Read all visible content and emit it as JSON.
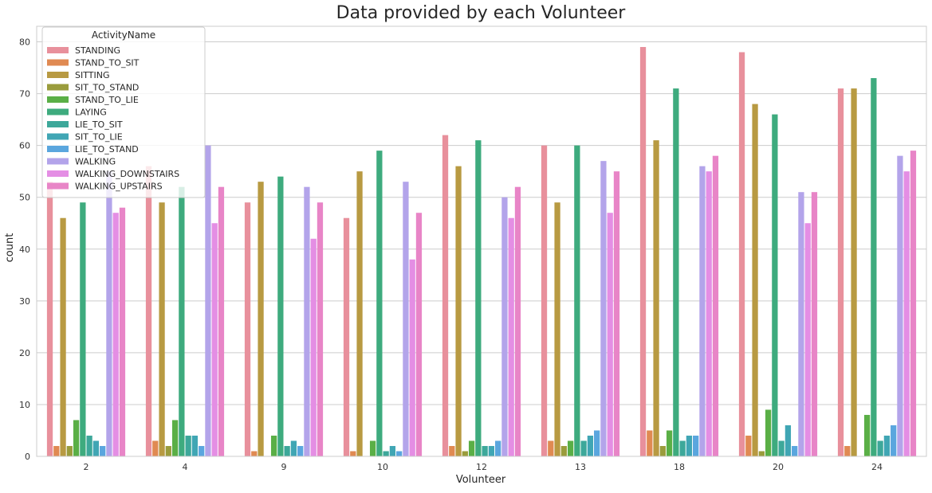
{
  "chart_data": {
    "type": "bar",
    "title": "Data provided by each Volunteer",
    "xlabel": "Volunteer",
    "ylabel": "count",
    "ylim": [
      0,
      83
    ],
    "yticks": [
      0,
      10,
      20,
      30,
      40,
      50,
      60,
      70,
      80
    ],
    "grid": true,
    "legend": {
      "title": "ActivityName",
      "placement": "top-left"
    },
    "categories": [
      "2",
      "4",
      "9",
      "10",
      "12",
      "13",
      "18",
      "20",
      "24"
    ],
    "series": [
      {
        "name": "STANDING",
        "color": "#e8909c",
        "values": [
          53,
          56,
          49,
          46,
          62,
          60,
          79,
          78,
          71
        ]
      },
      {
        "name": "STAND_TO_SIT",
        "color": "#e08a52",
        "values": [
          2,
          3,
          1,
          1,
          2,
          3,
          5,
          4,
          2
        ]
      },
      {
        "name": "SITTING",
        "color": "#b89a42",
        "values": [
          46,
          49,
          53,
          55,
          56,
          49,
          61,
          68,
          71
        ]
      },
      {
        "name": "SIT_TO_STAND",
        "color": "#9a9c3c",
        "values": [
          2,
          2,
          0,
          0,
          1,
          2,
          2,
          1,
          0
        ]
      },
      {
        "name": "STAND_TO_LIE",
        "color": "#5aaf46",
        "values": [
          7,
          7,
          4,
          3,
          3,
          3,
          5,
          9,
          8
        ]
      },
      {
        "name": "LAYING",
        "color": "#3eab7e",
        "values": [
          49,
          52,
          54,
          59,
          61,
          60,
          71,
          66,
          73
        ]
      },
      {
        "name": "LIE_TO_SIT",
        "color": "#3da89a",
        "values": [
          4,
          4,
          2,
          1,
          2,
          3,
          3,
          3,
          3
        ]
      },
      {
        "name": "SIT_TO_LIE",
        "color": "#40a6b4",
        "values": [
          3,
          4,
          3,
          2,
          2,
          4,
          4,
          6,
          4
        ]
      },
      {
        "name": "LIE_TO_STAND",
        "color": "#5aa6de",
        "values": [
          2,
          2,
          2,
          1,
          3,
          5,
          4,
          2,
          6
        ]
      },
      {
        "name": "WALKING",
        "color": "#b3a4ea",
        "values": [
          55,
          60,
          52,
          53,
          50,
          57,
          56,
          51,
          58
        ]
      },
      {
        "name": "WALKING_DOWNSTAIRS",
        "color": "#e48ee4",
        "values": [
          47,
          45,
          42,
          38,
          46,
          47,
          55,
          45,
          55
        ]
      },
      {
        "name": "WALKING_UPSTAIRS",
        "color": "#e885c7",
        "values": [
          48,
          52,
          49,
          47,
          52,
          55,
          58,
          51,
          59
        ]
      }
    ]
  }
}
